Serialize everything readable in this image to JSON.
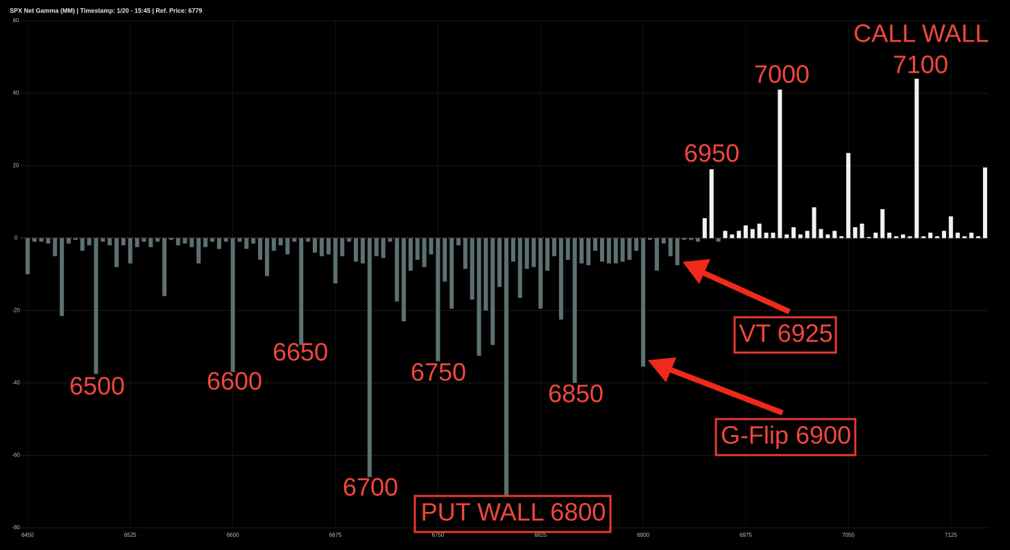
{
  "chart_data": {
    "type": "bar",
    "title": "SPX Net Gamma (MM) | Timestamp: 1/20 - 15:45  | Ref. Price: 6779",
    "x": [
      6450,
      6455,
      6460,
      6465,
      6470,
      6475,
      6480,
      6485,
      6490,
      6495,
      6500,
      6505,
      6510,
      6515,
      6520,
      6525,
      6530,
      6535,
      6540,
      6545,
      6550,
      6555,
      6560,
      6565,
      6570,
      6575,
      6580,
      6585,
      6590,
      6595,
      6600,
      6605,
      6610,
      6615,
      6620,
      6625,
      6630,
      6635,
      6640,
      6645,
      6650,
      6655,
      6660,
      6665,
      6670,
      6675,
      6680,
      6685,
      6690,
      6695,
      6700,
      6705,
      6710,
      6715,
      6720,
      6725,
      6730,
      6735,
      6740,
      6745,
      6750,
      6755,
      6760,
      6765,
      6770,
      6775,
      6780,
      6785,
      6790,
      6795,
      6800,
      6805,
      6810,
      6815,
      6820,
      6825,
      6830,
      6835,
      6840,
      6845,
      6850,
      6855,
      6860,
      6865,
      6870,
      6875,
      6880,
      6885,
      6890,
      6895,
      6900,
      6905,
      6910,
      6915,
      6920,
      6925,
      6930,
      6935,
      6940,
      6945,
      6950,
      6955,
      6960,
      6965,
      6970,
      6975,
      6980,
      6985,
      6990,
      6995,
      7000,
      7005,
      7010,
      7015,
      7020,
      7025,
      7030,
      7035,
      7040,
      7045,
      7050,
      7055,
      7060,
      7065,
      7070,
      7075,
      7080,
      7085,
      7090,
      7095,
      7100,
      7105,
      7110,
      7115,
      7120,
      7125,
      7130,
      7135,
      7140,
      7145,
      7150
    ],
    "values": [
      -10,
      -1,
      -1,
      -1.5,
      -5,
      -21.5,
      -1.5,
      -0.5,
      -3.5,
      -2,
      -37.5,
      -1,
      -2,
      -8,
      -2,
      -7,
      -2.5,
      -1,
      -2.5,
      -1,
      -16,
      -0.5,
      -2,
      -1.5,
      -2.5,
      -7,
      -2.5,
      -1,
      -3,
      -1,
      -37,
      -1,
      -3,
      -1.5,
      -6,
      -10.5,
      -3.5,
      -2,
      -4.5,
      -1,
      -29.5,
      -1,
      -4,
      -5,
      -4.5,
      -12.5,
      -5,
      -1,
      -6.5,
      -7,
      -66,
      -5,
      -5.5,
      -1,
      -17.5,
      -23,
      -9,
      -6,
      -8,
      -4.5,
      -34,
      -12,
      -19.5,
      -2,
      -8.5,
      -17,
      -32.5,
      -20,
      -29.5,
      -13.5,
      -71,
      -6.5,
      -16.5,
      -8.5,
      -8,
      -19.5,
      -9,
      -5,
      -22.5,
      -6,
      -40,
      -7,
      -7.5,
      -3.5,
      -6.5,
      -7,
      -7,
      -6.5,
      -6,
      -3.5,
      -35.5,
      -0.5,
      -9,
      -1.5,
      -5,
      -7.5,
      -0.5,
      -0.5,
      -1,
      5.5,
      19,
      -1,
      2,
      1,
      2,
      3.5,
      2.5,
      4,
      1.5,
      1.5,
      41,
      1,
      3,
      1,
      2,
      8.5,
      2.5,
      1,
      2,
      0.5,
      23.5,
      3,
      4,
      0.3,
      1.5,
      8,
      1.5,
      0.5,
      1,
      0.5,
      44,
      0.5,
      1.5,
      0.5,
      2,
      6,
      1.5,
      0.5,
      1.5,
      0.5,
      19.5
    ],
    "colors": {
      "negative": "#5d7072",
      "positive": "#f2f2f2"
    },
    "xlim": [
      6445,
      7152.5
    ],
    "xticks": [
      6450,
      6525,
      6600,
      6675,
      6750,
      6825,
      6900,
      6975,
      7050,
      7125
    ],
    "ylim": [
      -80,
      60
    ],
    "yticks": [
      -80,
      -60,
      -40,
      -20,
      0,
      20,
      40,
      60
    ],
    "grid": true,
    "annotations": [
      "6500",
      "6600",
      "6650",
      "6700",
      "6750",
      "PUT WALL 6800",
      "6850",
      "6950",
      "7000",
      "CALL WALL",
      "7100",
      "VT 6925",
      "G-Flip 6900"
    ]
  }
}
